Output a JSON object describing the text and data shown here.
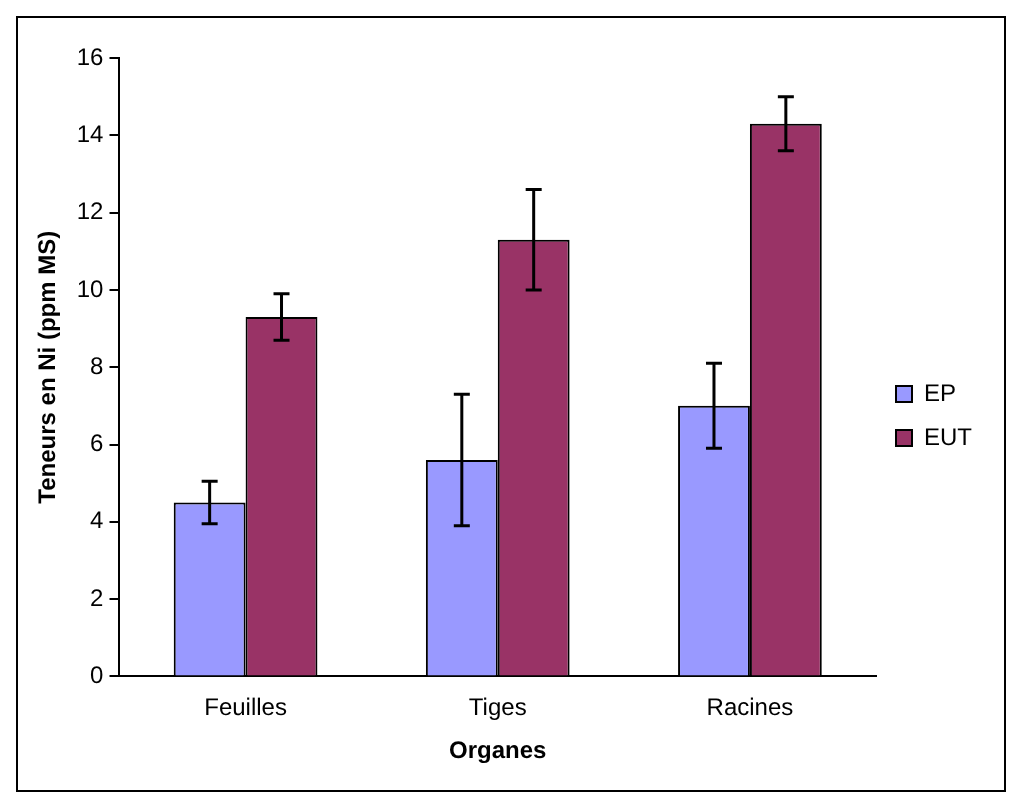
{
  "chart_data": {
    "type": "bar",
    "xlabel": "Organes",
    "ylabel": "Teneurs en Ni (ppm MS)",
    "categories": [
      "Feuilles",
      "Tiges",
      "Racines"
    ],
    "series": [
      {
        "name": "EP",
        "color": "#9999ff",
        "values": [
          4.5,
          5.6,
          7.0
        ],
        "errors": [
          0.55,
          1.7,
          1.1
        ]
      },
      {
        "name": "EUT",
        "color": "#993366",
        "values": [
          9.3,
          11.3,
          14.3
        ],
        "errors": [
          0.6,
          1.3,
          0.7
        ]
      }
    ],
    "ylim": [
      0,
      16
    ],
    "yticks": [
      0,
      2,
      4,
      6,
      8,
      10,
      12,
      14,
      16
    ],
    "grid": false,
    "legend": "right"
  }
}
